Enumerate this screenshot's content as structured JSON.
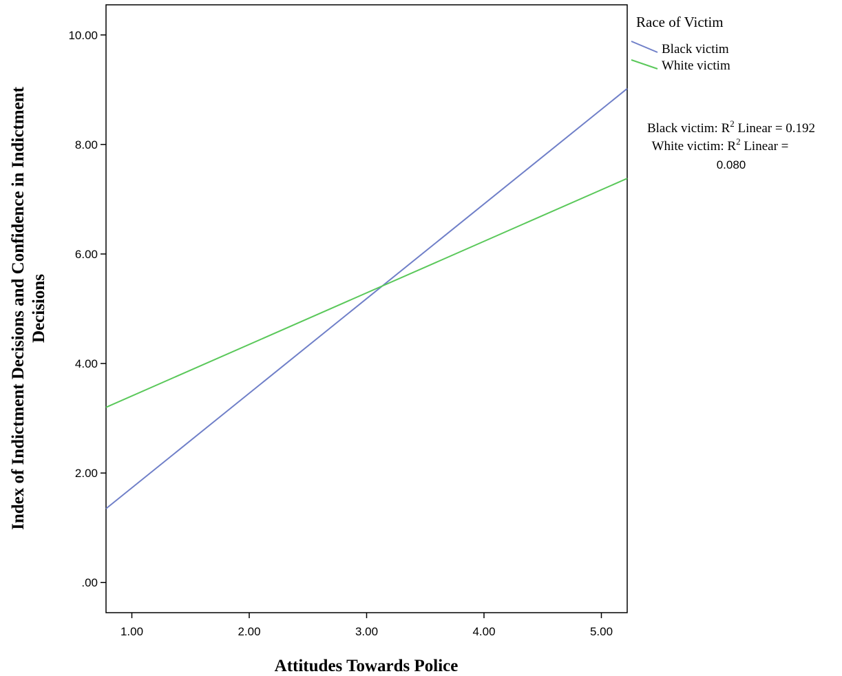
{
  "chart_data": {
    "type": "line",
    "xlabel": "Attitudes Towards Police",
    "ylabel_line1": "Index of Indictment Decisions and Confidence in Indictment",
    "ylabel_line2": "Decisions",
    "xlim": [
      0.78,
      5.22
    ],
    "ylim": [
      -0.55,
      10.55
    ],
    "x_ticks": [
      1,
      2,
      3,
      4,
      5
    ],
    "x_tick_labels": [
      "1.00",
      "2.00",
      "3.00",
      "4.00",
      "5.00"
    ],
    "y_ticks": [
      0,
      2,
      4,
      6,
      8,
      10
    ],
    "y_tick_labels": [
      ".00",
      "2.00",
      "4.00",
      "6.00",
      "8.00",
      "10.00"
    ],
    "grid": false,
    "legend_title": "Race of Victim",
    "legend_position": "top-right, outside plot",
    "series": [
      {
        "name": "Black victim",
        "color": "#6f7fc8",
        "x": [
          0.78,
          5.22
        ],
        "y": [
          1.35,
          9.02
        ]
      },
      {
        "name": "White victim",
        "color": "#5ac85a",
        "x": [
          0.78,
          5.22
        ],
        "y": [
          3.2,
          7.38
        ]
      }
    ],
    "annotation": {
      "line1_prefix": "Black victim: R",
      "line1_sup": "2",
      "line1_suffix": " Linear = 0.192",
      "line2_prefix": "White victim: R",
      "line2_sup": "2",
      "line2_suffix": " Linear =",
      "line3": "0.080"
    }
  }
}
